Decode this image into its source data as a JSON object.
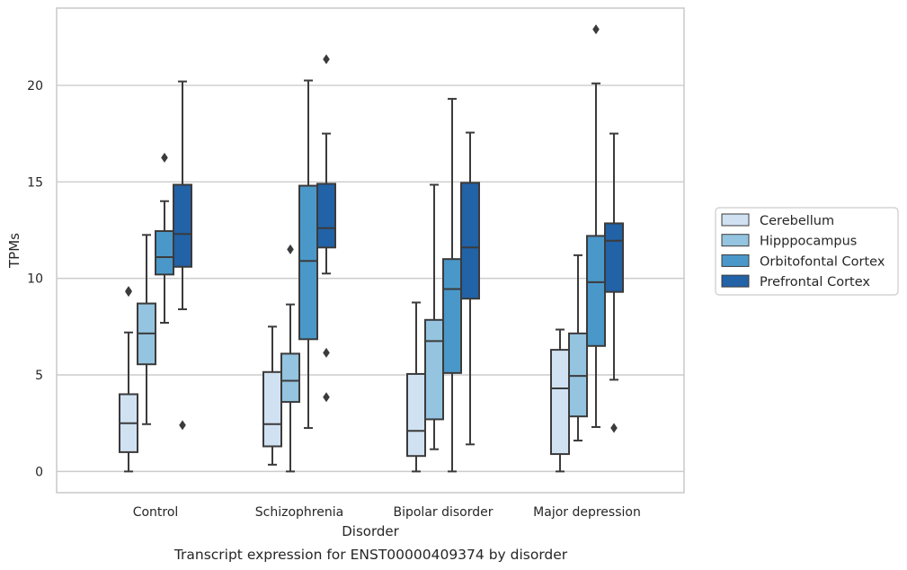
{
  "chart_data": {
    "type": "box",
    "xlabel": "Disorder",
    "ylabel": "TPMs",
    "caption": "Transcript expression for ENST00000409374 by disorder",
    "ylim": [
      -1.1,
      24.0
    ],
    "yticks": [
      0,
      5,
      10,
      15,
      20
    ],
    "grid": "horizontal",
    "legend_position": "right",
    "categories": [
      "Control",
      "Schizophrenia",
      "Bipolar disorder",
      "Major depression"
    ],
    "series": [
      {
        "name": "Cerebellum",
        "color": "#d0e1f2",
        "boxes": [
          {
            "whisker_low": 0.0,
            "q1": 1.0,
            "median": 2.5,
            "q3": 4.0,
            "whisker_high": 7.2,
            "outliers": [
              9.35,
              9.3
            ]
          },
          {
            "whisker_low": 0.35,
            "q1": 1.3,
            "median": 2.45,
            "q3": 5.15,
            "whisker_high": 7.5,
            "outliers": []
          },
          {
            "whisker_low": 0.0,
            "q1": 0.8,
            "median": 2.1,
            "q3": 5.05,
            "whisker_high": 8.75,
            "outliers": []
          },
          {
            "whisker_low": 0.0,
            "q1": 0.9,
            "median": 4.3,
            "q3": 6.3,
            "whisker_high": 7.35,
            "outliers": []
          }
        ]
      },
      {
        "name": "Hipppocampus",
        "color": "#94c4df",
        "boxes": [
          {
            "whisker_low": 2.45,
            "q1": 5.55,
            "median": 7.15,
            "q3": 8.7,
            "whisker_high": 12.25,
            "outliers": []
          },
          {
            "whisker_low": 0.0,
            "q1": 3.6,
            "median": 4.7,
            "q3": 6.1,
            "whisker_high": 8.65,
            "outliers": [
              11.5
            ]
          },
          {
            "whisker_low": 1.15,
            "q1": 2.7,
            "median": 6.75,
            "q3": 7.85,
            "whisker_high": 14.85,
            "outliers": []
          },
          {
            "whisker_low": 1.6,
            "q1": 2.85,
            "median": 4.95,
            "q3": 7.15,
            "whisker_high": 11.2,
            "outliers": []
          }
        ]
      },
      {
        "name": "Orbitofontal Cortex",
        "color": "#4a98c9",
        "boxes": [
          {
            "whisker_low": 7.7,
            "q1": 10.2,
            "median": 11.1,
            "q3": 12.45,
            "whisker_high": 14.0,
            "outliers": [
              16.25
            ]
          },
          {
            "whisker_low": 2.25,
            "q1": 6.85,
            "median": 10.9,
            "q3": 14.8,
            "whisker_high": 20.25,
            "outliers": []
          },
          {
            "whisker_low": 0.0,
            "q1": 5.1,
            "median": 9.45,
            "q3": 11.0,
            "whisker_high": 19.3,
            "outliers": []
          },
          {
            "whisker_low": 2.3,
            "q1": 6.5,
            "median": 9.8,
            "q3": 12.2,
            "whisker_high": 20.1,
            "outliers": [
              22.9
            ]
          }
        ]
      },
      {
        "name": "Prefrontal Cortex",
        "color": "#2262a6",
        "boxes": [
          {
            "whisker_low": 8.4,
            "q1": 10.6,
            "median": 12.3,
            "q3": 14.85,
            "whisker_high": 20.2,
            "outliers": [
              2.4
            ]
          },
          {
            "whisker_low": 10.25,
            "q1": 11.6,
            "median": 12.6,
            "q3": 14.9,
            "whisker_high": 17.5,
            "outliers": [
              21.35,
              6.15,
              3.85
            ]
          },
          {
            "whisker_low": 1.4,
            "q1": 8.95,
            "median": 11.6,
            "q3": 14.95,
            "whisker_high": 17.55,
            "outliers": []
          },
          {
            "whisker_low": 4.75,
            "q1": 9.3,
            "median": 11.95,
            "q3": 12.85,
            "whisker_high": 17.5,
            "outliers": [
              2.25
            ]
          }
        ]
      }
    ]
  }
}
